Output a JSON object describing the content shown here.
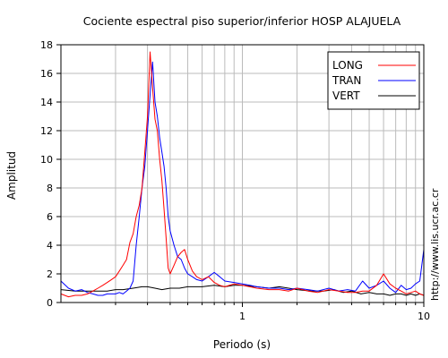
{
  "chart_data": {
    "type": "line",
    "title": "Cociente espectral piso superior/inferior  HOSP ALAJUELA",
    "xlabel": "Periodo (s)",
    "ylabel": "Amplitud",
    "xscale": "log",
    "xlim": [
      0.1,
      10
    ],
    "ylim": [
      0,
      18
    ],
    "xticks": [
      1,
      10
    ],
    "yticks": [
      0,
      2,
      4,
      6,
      8,
      10,
      12,
      14,
      16,
      18
    ],
    "grid": true,
    "legend_position": "top-right",
    "series": [
      {
        "name": "LONG",
        "color": "#ff0000",
        "x": [
          0.1,
          0.11,
          0.12,
          0.13,
          0.14,
          0.15,
          0.16,
          0.17,
          0.18,
          0.19,
          0.2,
          0.21,
          0.22,
          0.23,
          0.24,
          0.25,
          0.26,
          0.27,
          0.28,
          0.29,
          0.3,
          0.31,
          0.32,
          0.33,
          0.34,
          0.35,
          0.36,
          0.37,
          0.38,
          0.39,
          0.4,
          0.42,
          0.44,
          0.46,
          0.48,
          0.5,
          0.53,
          0.56,
          0.6,
          0.65,
          0.7,
          0.75,
          0.8,
          0.9,
          1.0,
          1.1,
          1.2,
          1.4,
          1.6,
          1.8,
          2.0,
          2.3,
          2.6,
          3.0,
          3.4,
          3.8,
          4.2,
          4.6,
          5.0,
          5.5,
          6.0,
          6.5,
          7.0,
          7.5,
          8.0,
          8.5,
          9.0,
          9.5,
          10.0
        ],
        "y": [
          0.6,
          0.4,
          0.5,
          0.5,
          0.6,
          0.8,
          1.0,
          1.2,
          1.4,
          1.6,
          1.8,
          2.2,
          2.6,
          3.0,
          4.2,
          4.8,
          6.0,
          6.8,
          8.0,
          10.5,
          13.0,
          17.5,
          15.0,
          12.8,
          12.0,
          10.0,
          8.5,
          6.5,
          4.5,
          2.4,
          2.0,
          2.6,
          3.2,
          3.5,
          3.7,
          3.0,
          2.2,
          1.8,
          1.6,
          1.8,
          1.4,
          1.2,
          1.1,
          1.3,
          1.2,
          1.1,
          1.0,
          0.9,
          0.9,
          0.8,
          1.0,
          0.8,
          0.7,
          0.9,
          0.8,
          0.7,
          0.7,
          0.8,
          0.8,
          1.2,
          2.0,
          1.3,
          1.0,
          0.8,
          0.6,
          0.7,
          0.8,
          0.6,
          0.5
        ]
      },
      {
        "name": "TRAN",
        "color": "#0000ff",
        "x": [
          0.1,
          0.11,
          0.12,
          0.13,
          0.14,
          0.15,
          0.16,
          0.17,
          0.18,
          0.19,
          0.2,
          0.21,
          0.22,
          0.23,
          0.24,
          0.25,
          0.26,
          0.27,
          0.28,
          0.29,
          0.3,
          0.31,
          0.32,
          0.33,
          0.34,
          0.35,
          0.36,
          0.37,
          0.38,
          0.39,
          0.4,
          0.42,
          0.44,
          0.46,
          0.48,
          0.5,
          0.53,
          0.56,
          0.6,
          0.65,
          0.7,
          0.75,
          0.8,
          0.9,
          1.0,
          1.1,
          1.2,
          1.4,
          1.6,
          1.8,
          2.0,
          2.3,
          2.6,
          3.0,
          3.4,
          3.8,
          4.2,
          4.6,
          5.0,
          5.5,
          6.0,
          6.5,
          7.0,
          7.5,
          8.0,
          8.5,
          9.0,
          9.5,
          10.0
        ],
        "y": [
          1.5,
          1.0,
          0.8,
          0.9,
          0.7,
          0.6,
          0.5,
          0.5,
          0.6,
          0.6,
          0.6,
          0.7,
          0.6,
          0.8,
          1.0,
          1.5,
          4.0,
          6.0,
          8.0,
          9.5,
          12.0,
          14.5,
          16.8,
          14.0,
          13.0,
          11.5,
          10.5,
          9.5,
          8.0,
          6.0,
          5.0,
          4.0,
          3.2,
          3.0,
          2.4,
          2.0,
          1.8,
          1.6,
          1.5,
          1.8,
          2.1,
          1.8,
          1.5,
          1.4,
          1.3,
          1.2,
          1.1,
          1.0,
          1.0,
          0.9,
          1.0,
          0.9,
          0.8,
          1.0,
          0.8,
          0.9,
          0.8,
          1.5,
          1.0,
          1.2,
          1.5,
          1.0,
          0.7,
          1.2,
          0.9,
          1.0,
          1.3,
          1.5,
          3.7
        ]
      },
      {
        "name": "VERT",
        "color": "#000000",
        "x": [
          0.1,
          0.12,
          0.14,
          0.16,
          0.18,
          0.2,
          0.22,
          0.25,
          0.28,
          0.3,
          0.33,
          0.36,
          0.4,
          0.45,
          0.5,
          0.6,
          0.7,
          0.8,
          0.9,
          1.0,
          1.2,
          1.4,
          1.6,
          1.8,
          2.0,
          2.4,
          2.8,
          3.2,
          3.6,
          4.0,
          4.5,
          5.0,
          5.5,
          6.0,
          6.5,
          7.0,
          7.5,
          8.0,
          8.5,
          9.0,
          9.5,
          10.0
        ],
        "y": [
          0.9,
          0.8,
          0.8,
          0.8,
          0.8,
          0.9,
          0.9,
          1.0,
          1.1,
          1.1,
          1.0,
          0.9,
          1.0,
          1.0,
          1.1,
          1.1,
          1.2,
          1.1,
          1.2,
          1.2,
          1.1,
          1.0,
          1.1,
          1.0,
          0.9,
          0.8,
          0.8,
          0.9,
          0.7,
          0.8,
          0.6,
          0.7,
          0.6,
          0.6,
          0.5,
          0.6,
          0.6,
          0.5,
          0.6,
          0.5,
          0.6,
          0.5
        ]
      }
    ]
  },
  "credit": "http://www.lis.ucr.ac.cr"
}
